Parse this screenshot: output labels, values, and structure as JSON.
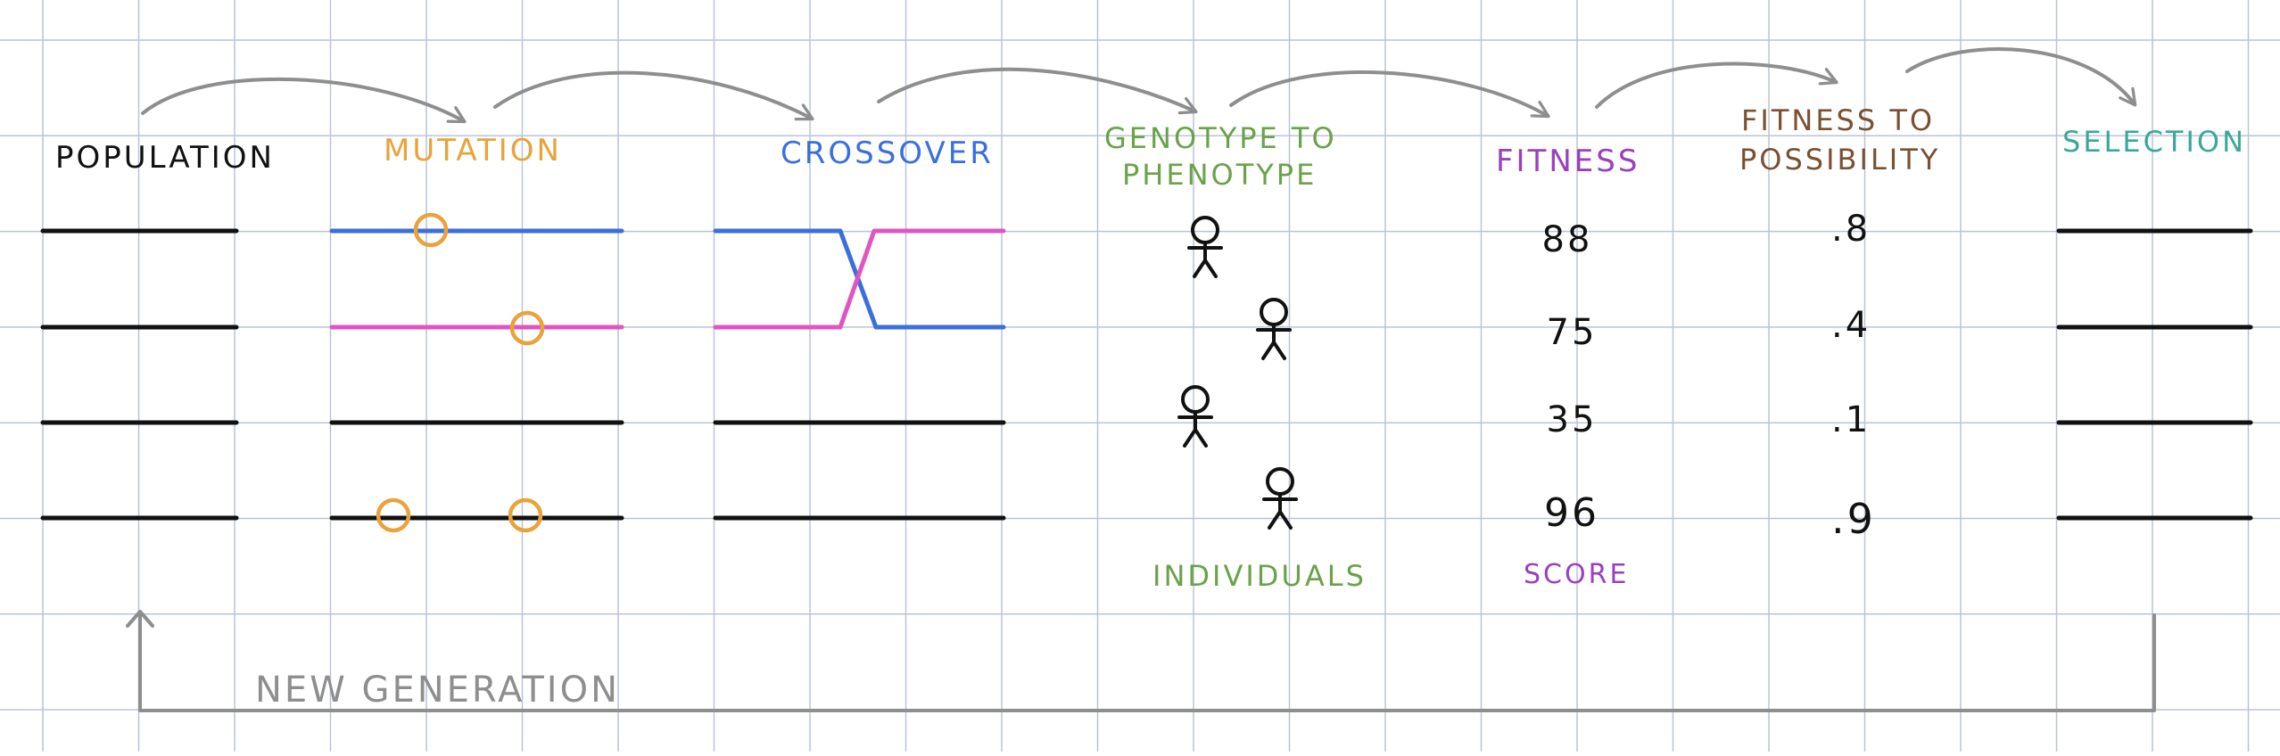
{
  "stages": {
    "population": "POPULATION",
    "mutation": "MUTATION",
    "crossover": "CROSSOVER",
    "genotype_line1": "GENOTYPE TO",
    "genotype_line2": "PHENOTYPE",
    "fitness": "FITNESS",
    "possibility_line1": "FITNESS TO",
    "possibility_line2": "POSSIBILITY",
    "selection": "SELECTION"
  },
  "fitness_scores": [
    "88",
    "75",
    "35",
    "96"
  ],
  "possibilities": [
    ".8",
    ".4",
    ".1",
    ".9"
  ],
  "captions": {
    "individuals": "INDIVIDUALS",
    "score": "SCORE",
    "new_generation": "NEW GENERATION"
  },
  "colors": {
    "grid": "#b9c3d8",
    "black": "#111111",
    "mutation": "#e8a33a",
    "crossover": "#3a6fdc",
    "pink": "#e055c2",
    "genotype": "#6aa24a",
    "fitness": "#9a3fc0",
    "possibility": "#7a5030",
    "selection": "#3aa898",
    "arrow": "#8e8e8e"
  },
  "icons": {
    "individual": "stick-figure-icon",
    "mutation_marker": "circle-marker-icon",
    "arrow": "curved-arrow-icon"
  }
}
